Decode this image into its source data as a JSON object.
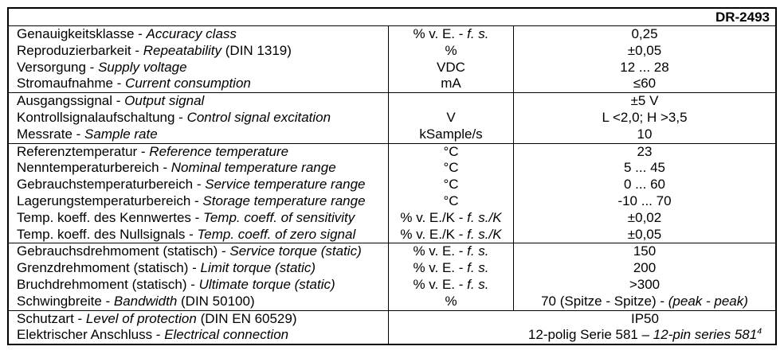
{
  "colors": {
    "background": "#ffffff",
    "text": "#000000",
    "border": "#000000"
  },
  "header": {
    "model": "DR-2493"
  },
  "blocks": [
    {
      "rows": [
        {
          "de": "Genauigkeitsklasse - ",
          "en": "Accuracy class",
          "suffix": "",
          "unit": "% v. E. - ",
          "unit_it": "f. s.",
          "value": "0,25",
          "value_it": "",
          "value_sup": ""
        },
        {
          "de": "Reproduzierbarkeit - ",
          "en": "Repeatability",
          "suffix": " (DIN 1319)",
          "unit": "%",
          "unit_it": "",
          "value": "±0,05",
          "value_it": "",
          "value_sup": ""
        },
        {
          "de": "Versorgung - ",
          "en": "Supply voltage",
          "suffix": "",
          "unit": "VDC",
          "unit_it": "",
          "value": "12 ... 28",
          "value_it": "",
          "value_sup": ""
        },
        {
          "de": "Stromaufnahme - ",
          "en": "Current consumption",
          "suffix": "",
          "unit": "mA",
          "unit_it": "",
          "value": "≤60",
          "value_it": "",
          "value_sup": ""
        }
      ]
    },
    {
      "rows": [
        {
          "de": "Ausgangssignal - ",
          "en": "Output signal",
          "suffix": "",
          "unit": "",
          "unit_it": "",
          "value": "±5 V",
          "value_it": "",
          "value_sup": ""
        },
        {
          "de": "Kontrollsignalaufschaltung - ",
          "en": "Control signal excitation",
          "suffix": "",
          "unit": "V",
          "unit_it": "",
          "value": "L <2,0; H >3,5",
          "value_it": "",
          "value_sup": ""
        },
        {
          "de": "Messrate - ",
          "en": "Sample rate",
          "suffix": "",
          "unit": "kSample/s",
          "unit_it": "",
          "value": "10",
          "value_it": "",
          "value_sup": ""
        }
      ]
    },
    {
      "rows": [
        {
          "de": "Referenztemperatur - ",
          "en": "Reference temperature",
          "suffix": "",
          "unit": "°C",
          "unit_it": "",
          "value": "23",
          "value_it": "",
          "value_sup": ""
        },
        {
          "de": "Nenntemperaturbereich - ",
          "en": "Nominal temperature range",
          "suffix": "",
          "unit": "°C",
          "unit_it": "",
          "value": "5 ... 45",
          "value_it": "",
          "value_sup": ""
        },
        {
          "de": "Gebrauchstemperaturbereich - ",
          "en": "Service temperature range",
          "suffix": "",
          "unit": "°C",
          "unit_it": "",
          "value": "0 ... 60",
          "value_it": "",
          "value_sup": ""
        },
        {
          "de": "Lagerungstemperaturbereich - ",
          "en": "Storage temperature range",
          "suffix": "",
          "unit": "°C",
          "unit_it": "",
          "value": "-10 ... 70",
          "value_it": "",
          "value_sup": ""
        },
        {
          "de": "Temp. koeff. des Kennwertes - ",
          "en": "Temp. coeff. of sensitivity",
          "suffix": "",
          "unit": "% v. E./K - ",
          "unit_it": "f. s./K",
          "value": "±0,02",
          "value_it": "",
          "value_sup": ""
        },
        {
          "de": "Temp. koeff. des Nullsignals - ",
          "en": "Temp. coeff. of zero signal",
          "suffix": "",
          "unit": "% v. E./K - ",
          "unit_it": "f. s./K",
          "value": "±0,05",
          "value_it": "",
          "value_sup": ""
        }
      ]
    },
    {
      "rows": [
        {
          "de": "Gebrauchsdrehmoment (statisch) - ",
          "en": "Service torque (static)",
          "suffix": "",
          "unit": "% v. E. - ",
          "unit_it": "f. s.",
          "value": "150",
          "value_it": "",
          "value_sup": ""
        },
        {
          "de": "Grenzdrehmoment (statisch) - ",
          "en": "Limit torque (static)",
          "suffix": "",
          "unit": "% v. E. - ",
          "unit_it": "f. s.",
          "value": "200",
          "value_it": "",
          "value_sup": ""
        },
        {
          "de": "Bruchdrehmoment (statisch) - ",
          "en": "Ultimate torque (static)",
          "suffix": "",
          "unit": "% v. E. - ",
          "unit_it": "f. s.",
          "value": ">300",
          "value_it": "",
          "value_sup": ""
        },
        {
          "de": "Schwingbreite - ",
          "en": "Bandwidth",
          "suffix": " (DIN 50100)",
          "unit": "%",
          "unit_it": "",
          "value": "70 (Spitze - Spitze) - ",
          "value_it": "(peak - peak)",
          "value_sup": ""
        }
      ]
    },
    {
      "rows": [
        {
          "de": "Schutzart - ",
          "en": "Level of protection",
          "suffix": " (DIN EN 60529)",
          "value": "IP50",
          "value_it": "",
          "value_sup": ""
        },
        {
          "de": "Elektrischer Anschluss - ",
          "en": "Electrical connection",
          "suffix": "",
          "value": "12-polig Serie 581 – ",
          "value_it": "12-pin series 581",
          "value_sup": "4"
        }
      ]
    }
  ]
}
